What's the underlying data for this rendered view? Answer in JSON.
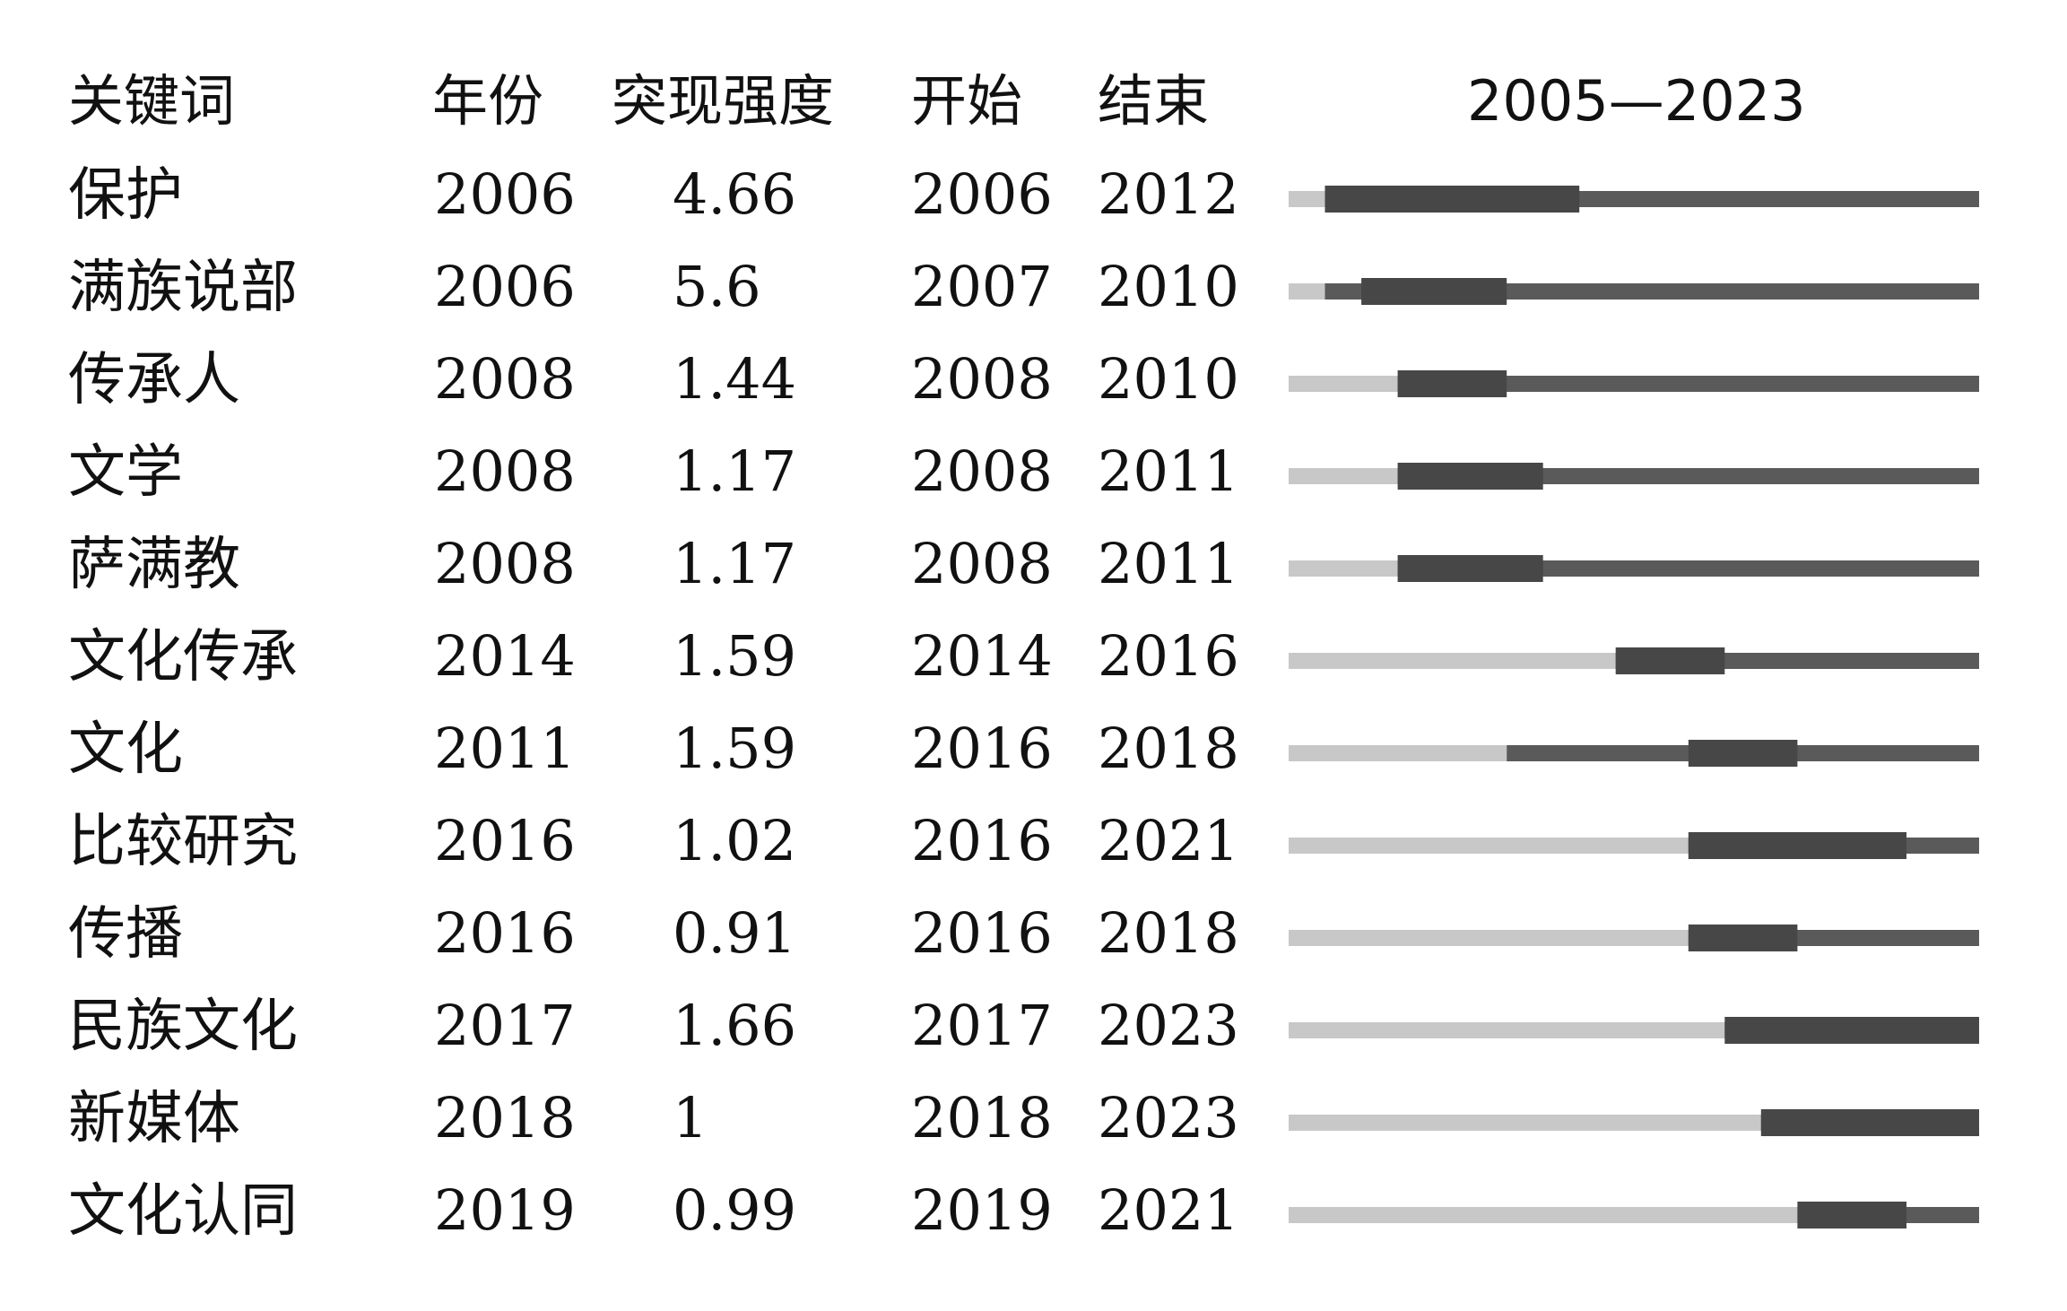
{
  "headers": {
    "keyword": "关键词",
    "year": "年份",
    "strength": "突现强度",
    "begin": "开始",
    "end": "结束",
    "range": "2005—2023"
  },
  "chart_data": {
    "type": "table",
    "timeline_range": [
      2005,
      2023
    ],
    "colors": {
      "baseline_before": "#c8c8c8",
      "baseline_after": "#5a5a5a",
      "burst": "#474747"
    },
    "rows": [
      {
        "keyword": "保护",
        "year": "2006",
        "strength": "4.66",
        "begin": "2006",
        "end": "2012"
      },
      {
        "keyword": "满族说部",
        "year": "2006",
        "strength": "5.6",
        "begin": "2007",
        "end": "2010"
      },
      {
        "keyword": "传承人",
        "year": "2008",
        "strength": "1.44",
        "begin": "2008",
        "end": "2010"
      },
      {
        "keyword": "文学",
        "year": "2008",
        "strength": "1.17",
        "begin": "2008",
        "end": "2011"
      },
      {
        "keyword": "萨满教",
        "year": "2008",
        "strength": "1.17",
        "begin": "2008",
        "end": "2011"
      },
      {
        "keyword": "文化传承",
        "year": "2014",
        "strength": "1.59",
        "begin": "2014",
        "end": "2016"
      },
      {
        "keyword": "文化",
        "year": "2011",
        "strength": "1.59",
        "begin": "2016",
        "end": "2018"
      },
      {
        "keyword": "比较研究",
        "year": "2016",
        "strength": "1.02",
        "begin": "2016",
        "end": "2021"
      },
      {
        "keyword": "传播",
        "year": "2016",
        "strength": "0.91",
        "begin": "2016",
        "end": "2018"
      },
      {
        "keyword": "民族文化",
        "year": "2017",
        "strength": "1.66",
        "begin": "2017",
        "end": "2023"
      },
      {
        "keyword": "新媒体",
        "year": "2018",
        "strength": "1",
        "begin": "2018",
        "end": "2023"
      },
      {
        "keyword": "文化认同",
        "year": "2019",
        "strength": "0.99",
        "begin": "2019",
        "end": "2021"
      }
    ]
  }
}
